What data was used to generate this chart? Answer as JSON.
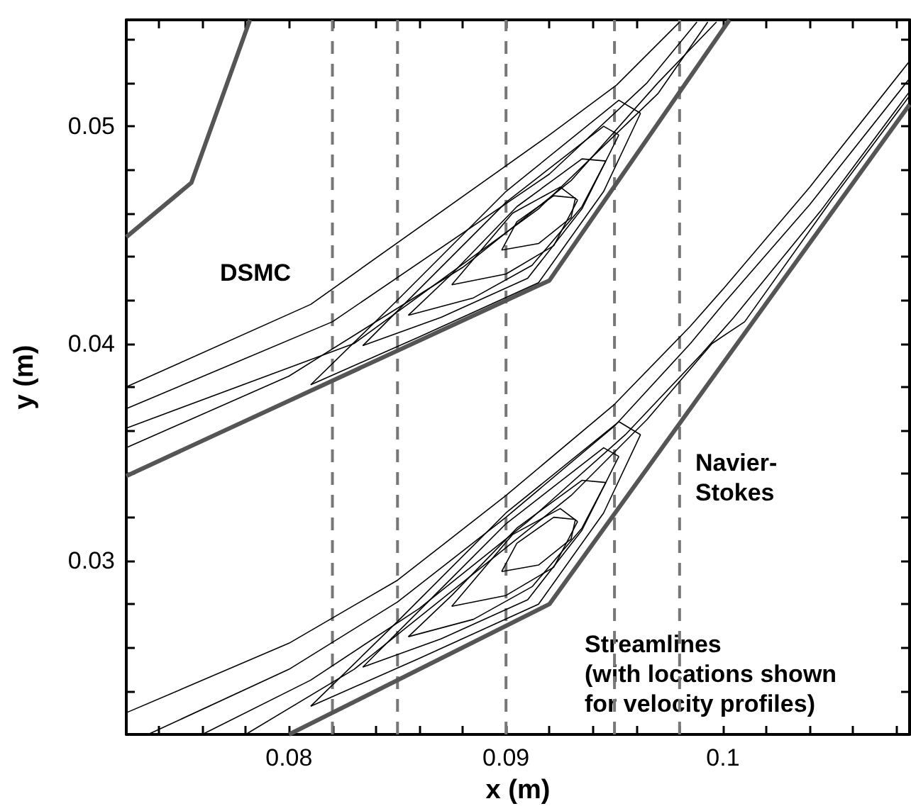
{
  "chart_data": {
    "type": "line",
    "xlabel": "x (m)",
    "ylabel": "y (m)",
    "marker": "none",
    "grid": false,
    "xlim": [
      0.0725,
      0.1086
    ],
    "ylim": [
      0.022,
      0.0549
    ],
    "xticks": [
      {
        "value": 0.074,
        "label": null
      },
      {
        "value": 0.076,
        "label": null
      },
      {
        "value": 0.078,
        "label": null
      },
      0.08,
      {
        "value": 0.082,
        "label": null
      },
      {
        "value": 0.084,
        "label": null
      },
      {
        "value": 0.086,
        "label": null
      },
      {
        "value": 0.088,
        "label": null
      },
      0.09,
      {
        "value": 0.092,
        "label": null
      },
      {
        "value": 0.094,
        "label": null
      },
      {
        "value": 0.096,
        "label": null
      },
      {
        "value": 0.098,
        "label": null
      },
      0.1,
      {
        "value": 0.102,
        "label": null
      },
      {
        "value": 0.104,
        "label": null
      },
      {
        "value": 0.106,
        "label": null
      },
      {
        "value": 0.108,
        "label": null
      }
    ],
    "yticks": [
      {
        "value": 0.024,
        "label": null
      },
      {
        "value": 0.026,
        "label": null
      },
      {
        "value": 0.028,
        "label": null
      },
      0.03,
      {
        "value": 0.032,
        "label": null
      },
      {
        "value": 0.034,
        "label": null
      },
      {
        "value": 0.036,
        "label": null
      },
      {
        "value": 0.038,
        "label": null
      },
      0.04,
      {
        "value": 0.042,
        "label": null
      },
      {
        "value": 0.044,
        "label": null
      },
      {
        "value": 0.046,
        "label": null
      },
      {
        "value": 0.048,
        "label": null
      },
      0.05,
      {
        "value": 0.052,
        "label": null
      },
      {
        "value": 0.054,
        "label": null
      }
    ],
    "annotations": [
      "DSMC",
      "Navier-\nStokes",
      "Streamlines\n(with locations shown\nfor velocity profiles)"
    ],
    "ref_lines": [
      {
        "axis": "x",
        "value": 0.082,
        "color": "#777777",
        "line_style": "dashed"
      },
      {
        "axis": "x",
        "value": 0.085,
        "color": "#777777",
        "line_style": "dashed"
      },
      {
        "axis": "x",
        "value": 0.09,
        "color": "#777777",
        "line_style": "dashed"
      },
      {
        "axis": "x",
        "value": 0.095,
        "color": "#777777",
        "line_style": "dashed"
      },
      {
        "axis": "x",
        "value": 0.098,
        "color": "#777777",
        "line_style": "dashed"
      }
    ],
    "series": [
      {
        "color": "#555555",
        "line_style": "solid",
        "x": [
          0.0725,
          0.0755,
          0.0782
        ],
        "values": [
          0.0449,
          0.0474,
          0.0549
        ]
      },
      {
        "color": "#555555",
        "line_style": "solid",
        "x": [
          0.0725,
          0.092,
          0.1003
        ],
        "values": [
          0.0339,
          0.0429,
          0.0549
        ]
      },
      {
        "color": "#555555",
        "line_style": "solid",
        "x": [
          0.08,
          0.092,
          0.1086
        ],
        "values": [
          0.022,
          0.028,
          0.051
        ]
      },
      {
        "color": "#000000",
        "x": [
          0.0725,
          0.081,
          0.092,
          0.0951,
          0.098
        ],
        "values": [
          0.038,
          0.0418,
          0.0496,
          0.0519,
          0.0548
        ]
      },
      {
        "color": "#000000",
        "x": [
          0.0725,
          0.082,
          0.092,
          0.0965,
          0.0988
        ],
        "values": [
          0.037,
          0.041,
          0.0478,
          0.052,
          0.0548
        ]
      },
      {
        "color": "#000000",
        "x": [
          0.0725,
          0.083,
          0.0915,
          0.097,
          0.0993
        ],
        "values": [
          0.0361,
          0.04,
          0.0462,
          0.0515,
          0.0548
        ]
      },
      {
        "color": "#000000",
        "x": [
          0.0725,
          0.08,
          0.088,
          0.093,
          0.097,
          0.0997
        ],
        "values": [
          0.0352,
          0.0385,
          0.0435,
          0.0475,
          0.052,
          0.0548
        ]
      },
      {
        "color": "#000000",
        "x": [
          0.081,
          0.086,
          0.0915,
          0.0945,
          0.0962
        ],
        "values": [
          0.0381,
          0.0403,
          0.0428,
          0.047,
          0.0506
        ]
      },
      {
        "color": "#000000",
        "x": [
          0.081,
          0.085,
          0.09,
          0.0952,
          0.0962
        ],
        "values": [
          0.0381,
          0.042,
          0.047,
          0.0512,
          0.0506
        ]
      },
      {
        "color": "#000000",
        "x": [
          0.0834,
          0.087,
          0.091,
          0.0935,
          0.0952
        ],
        "values": [
          0.0399,
          0.0412,
          0.043,
          0.0462,
          0.0496
        ]
      },
      {
        "color": "#000000",
        "x": [
          0.0834,
          0.086,
          0.09,
          0.0945,
          0.0952
        ],
        "values": [
          0.0399,
          0.0425,
          0.0465,
          0.05,
          0.0496
        ]
      },
      {
        "color": "#000000",
        "x": [
          0.0855,
          0.0885,
          0.0912,
          0.0935,
          0.0946
        ],
        "values": [
          0.0413,
          0.0421,
          0.0436,
          0.0463,
          0.0484
        ]
      },
      {
        "color": "#000000",
        "x": [
          0.0855,
          0.0875,
          0.0905,
          0.0935,
          0.0946
        ],
        "values": [
          0.0413,
          0.0432,
          0.0463,
          0.0485,
          0.0484
        ]
      },
      {
        "color": "#000000",
        "x": [
          0.0875,
          0.09,
          0.0922,
          0.0933
        ],
        "values": [
          0.0427,
          0.0432,
          0.0445,
          0.0466
        ]
      },
      {
        "color": "#000000",
        "x": [
          0.0875,
          0.0903,
          0.0925,
          0.0933
        ],
        "values": [
          0.0427,
          0.046,
          0.0472,
          0.0466
        ]
      },
      {
        "color": "#000000",
        "x": [
          0.0898,
          0.0915,
          0.093,
          0.0932
        ],
        "values": [
          0.0443,
          0.0446,
          0.0458,
          0.0467
        ]
      },
      {
        "color": "#000000",
        "x": [
          0.0898,
          0.0905,
          0.0922,
          0.0932
        ],
        "values": [
          0.0443,
          0.0456,
          0.0468,
          0.0467
        ]
      },
      {
        "color": "#000000",
        "x": [
          0.0725,
          0.08,
          0.085,
          0.09,
          0.095,
          0.0985,
          0.1,
          0.104,
          0.1086
        ],
        "values": [
          0.023,
          0.0262,
          0.0291,
          0.033,
          0.0372,
          0.0408,
          0.0425,
          0.0472,
          0.053
        ]
      },
      {
        "color": "#000000",
        "x": [
          0.0735,
          0.08,
          0.085,
          0.09,
          0.095,
          0.0985,
          0.1,
          0.104,
          0.1086
        ],
        "values": [
          0.022,
          0.025,
          0.0281,
          0.032,
          0.0362,
          0.04,
          0.0418,
          0.0464,
          0.0522
        ]
      },
      {
        "color": "#000000",
        "x": [
          0.076,
          0.081,
          0.086,
          0.091,
          0.0955,
          0.099,
          0.1005,
          0.1045,
          0.1086
        ],
        "values": [
          0.022,
          0.0245,
          0.0278,
          0.0318,
          0.0358,
          0.0395,
          0.0412,
          0.0461,
          0.0516
        ]
      },
      {
        "color": "#000000",
        "x": [
          0.078,
          0.083,
          0.088,
          0.093,
          0.0965,
          0.0995,
          0.101,
          0.105,
          0.1086
        ],
        "values": [
          0.022,
          0.025,
          0.029,
          0.033,
          0.0365,
          0.04,
          0.041,
          0.0466,
          0.0514
        ]
      },
      {
        "color": "#000000",
        "x": [
          0.081,
          0.086,
          0.0915,
          0.0945,
          0.0962
        ],
        "values": [
          0.0233,
          0.0255,
          0.028,
          0.0322,
          0.0358
        ]
      },
      {
        "color": "#000000",
        "x": [
          0.081,
          0.085,
          0.09,
          0.0952,
          0.0962
        ],
        "values": [
          0.0233,
          0.0272,
          0.0322,
          0.0364,
          0.0358
        ]
      },
      {
        "color": "#000000",
        "x": [
          0.0834,
          0.087,
          0.091,
          0.0935,
          0.0952
        ],
        "values": [
          0.0251,
          0.0264,
          0.0282,
          0.0314,
          0.0348
        ]
      },
      {
        "color": "#000000",
        "x": [
          0.0834,
          0.086,
          0.09,
          0.0945,
          0.0952
        ],
        "values": [
          0.0251,
          0.0277,
          0.0317,
          0.0352,
          0.0348
        ]
      },
      {
        "color": "#000000",
        "x": [
          0.0855,
          0.0885,
          0.0912,
          0.0935,
          0.0946
        ],
        "values": [
          0.0265,
          0.0273,
          0.0288,
          0.0315,
          0.0336
        ]
      },
      {
        "color": "#000000",
        "x": [
          0.0855,
          0.0875,
          0.0905,
          0.0935,
          0.0946
        ],
        "values": [
          0.0265,
          0.0284,
          0.0315,
          0.0337,
          0.0336
        ]
      },
      {
        "color": "#000000",
        "x": [
          0.0875,
          0.09,
          0.0922,
          0.0933
        ],
        "values": [
          0.0279,
          0.0284,
          0.0297,
          0.0318
        ]
      },
      {
        "color": "#000000",
        "x": [
          0.0875,
          0.0903,
          0.0925,
          0.0933
        ],
        "values": [
          0.0279,
          0.0312,
          0.0324,
          0.0318
        ]
      },
      {
        "color": "#000000",
        "x": [
          0.0898,
          0.0915,
          0.093,
          0.0932
        ],
        "values": [
          0.0295,
          0.0298,
          0.031,
          0.0319
        ]
      },
      {
        "color": "#000000",
        "x": [
          0.0898,
          0.0905,
          0.0922,
          0.0932
        ],
        "values": [
          0.0295,
          0.0308,
          0.032,
          0.0319
        ]
      }
    ]
  }
}
